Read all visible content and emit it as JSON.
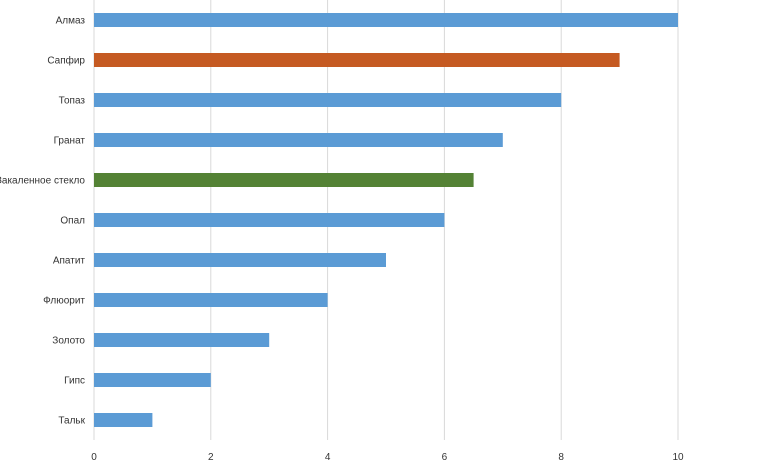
{
  "chart_data": {
    "type": "bar",
    "orientation": "horizontal",
    "categories": [
      "Алмаз",
      "Сапфир",
      "Топаз",
      "Гранат",
      "Закаленное стекло",
      "Опал",
      "Апатит",
      "Флюорит",
      "Золото",
      "Гипс",
      "Тальк"
    ],
    "values": [
      10,
      9,
      8,
      7,
      6.5,
      6,
      5,
      4,
      3,
      2,
      1
    ],
    "bar_colors": [
      "#5b9bd5",
      "#c55a22",
      "#5b9bd5",
      "#5b9bd5",
      "#548235",
      "#5b9bd5",
      "#5b9bd5",
      "#5b9bd5",
      "#5b9bd5",
      "#5b9bd5",
      "#5b9bd5"
    ],
    "xlim": [
      0,
      10
    ],
    "x_ticks": [
      "0",
      "2",
      "4",
      "6",
      "8",
      "10"
    ],
    "grid": "vertical",
    "legend": "none"
  }
}
